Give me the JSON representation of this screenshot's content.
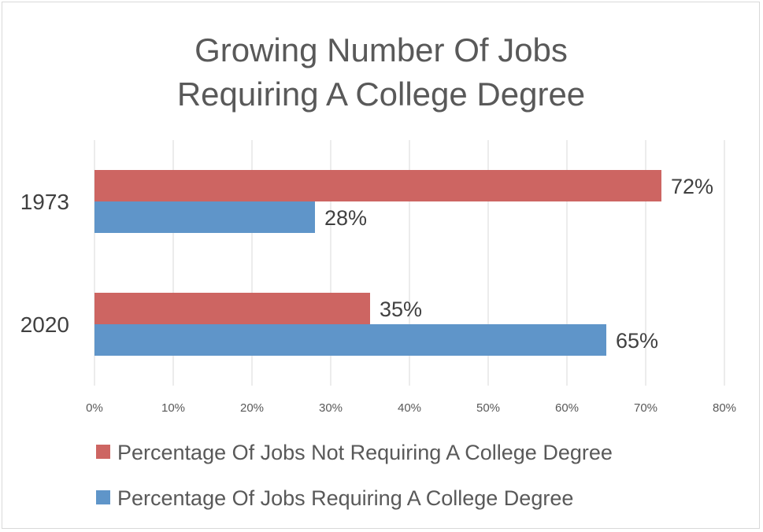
{
  "chart_data": {
    "type": "bar",
    "orientation": "horizontal",
    "title_lines": [
      "Growing Number Of Jobs",
      "Requiring A College Degree"
    ],
    "categories": [
      "1973",
      "2020"
    ],
    "series": [
      {
        "name": "Percentage Of Jobs Not Requiring A College Degree",
        "values": [
          72,
          35
        ],
        "labels": [
          "72%",
          "35%"
        ],
        "color": "#cd6562"
      },
      {
        "name": "Percentage Of Jobs Requiring A College Degree",
        "values": [
          28,
          65
        ],
        "labels": [
          "28%",
          "65%"
        ],
        "color": "#5f95c9"
      }
    ],
    "xlim": [
      0,
      80
    ],
    "x_ticks": [
      0,
      10,
      20,
      30,
      40,
      50,
      60,
      70,
      80
    ],
    "x_tick_labels": [
      "0%",
      "10%",
      "20%",
      "30%",
      "40%",
      "50%",
      "60%",
      "70%",
      "80%"
    ],
    "grid": true,
    "legend_position": "bottom"
  }
}
